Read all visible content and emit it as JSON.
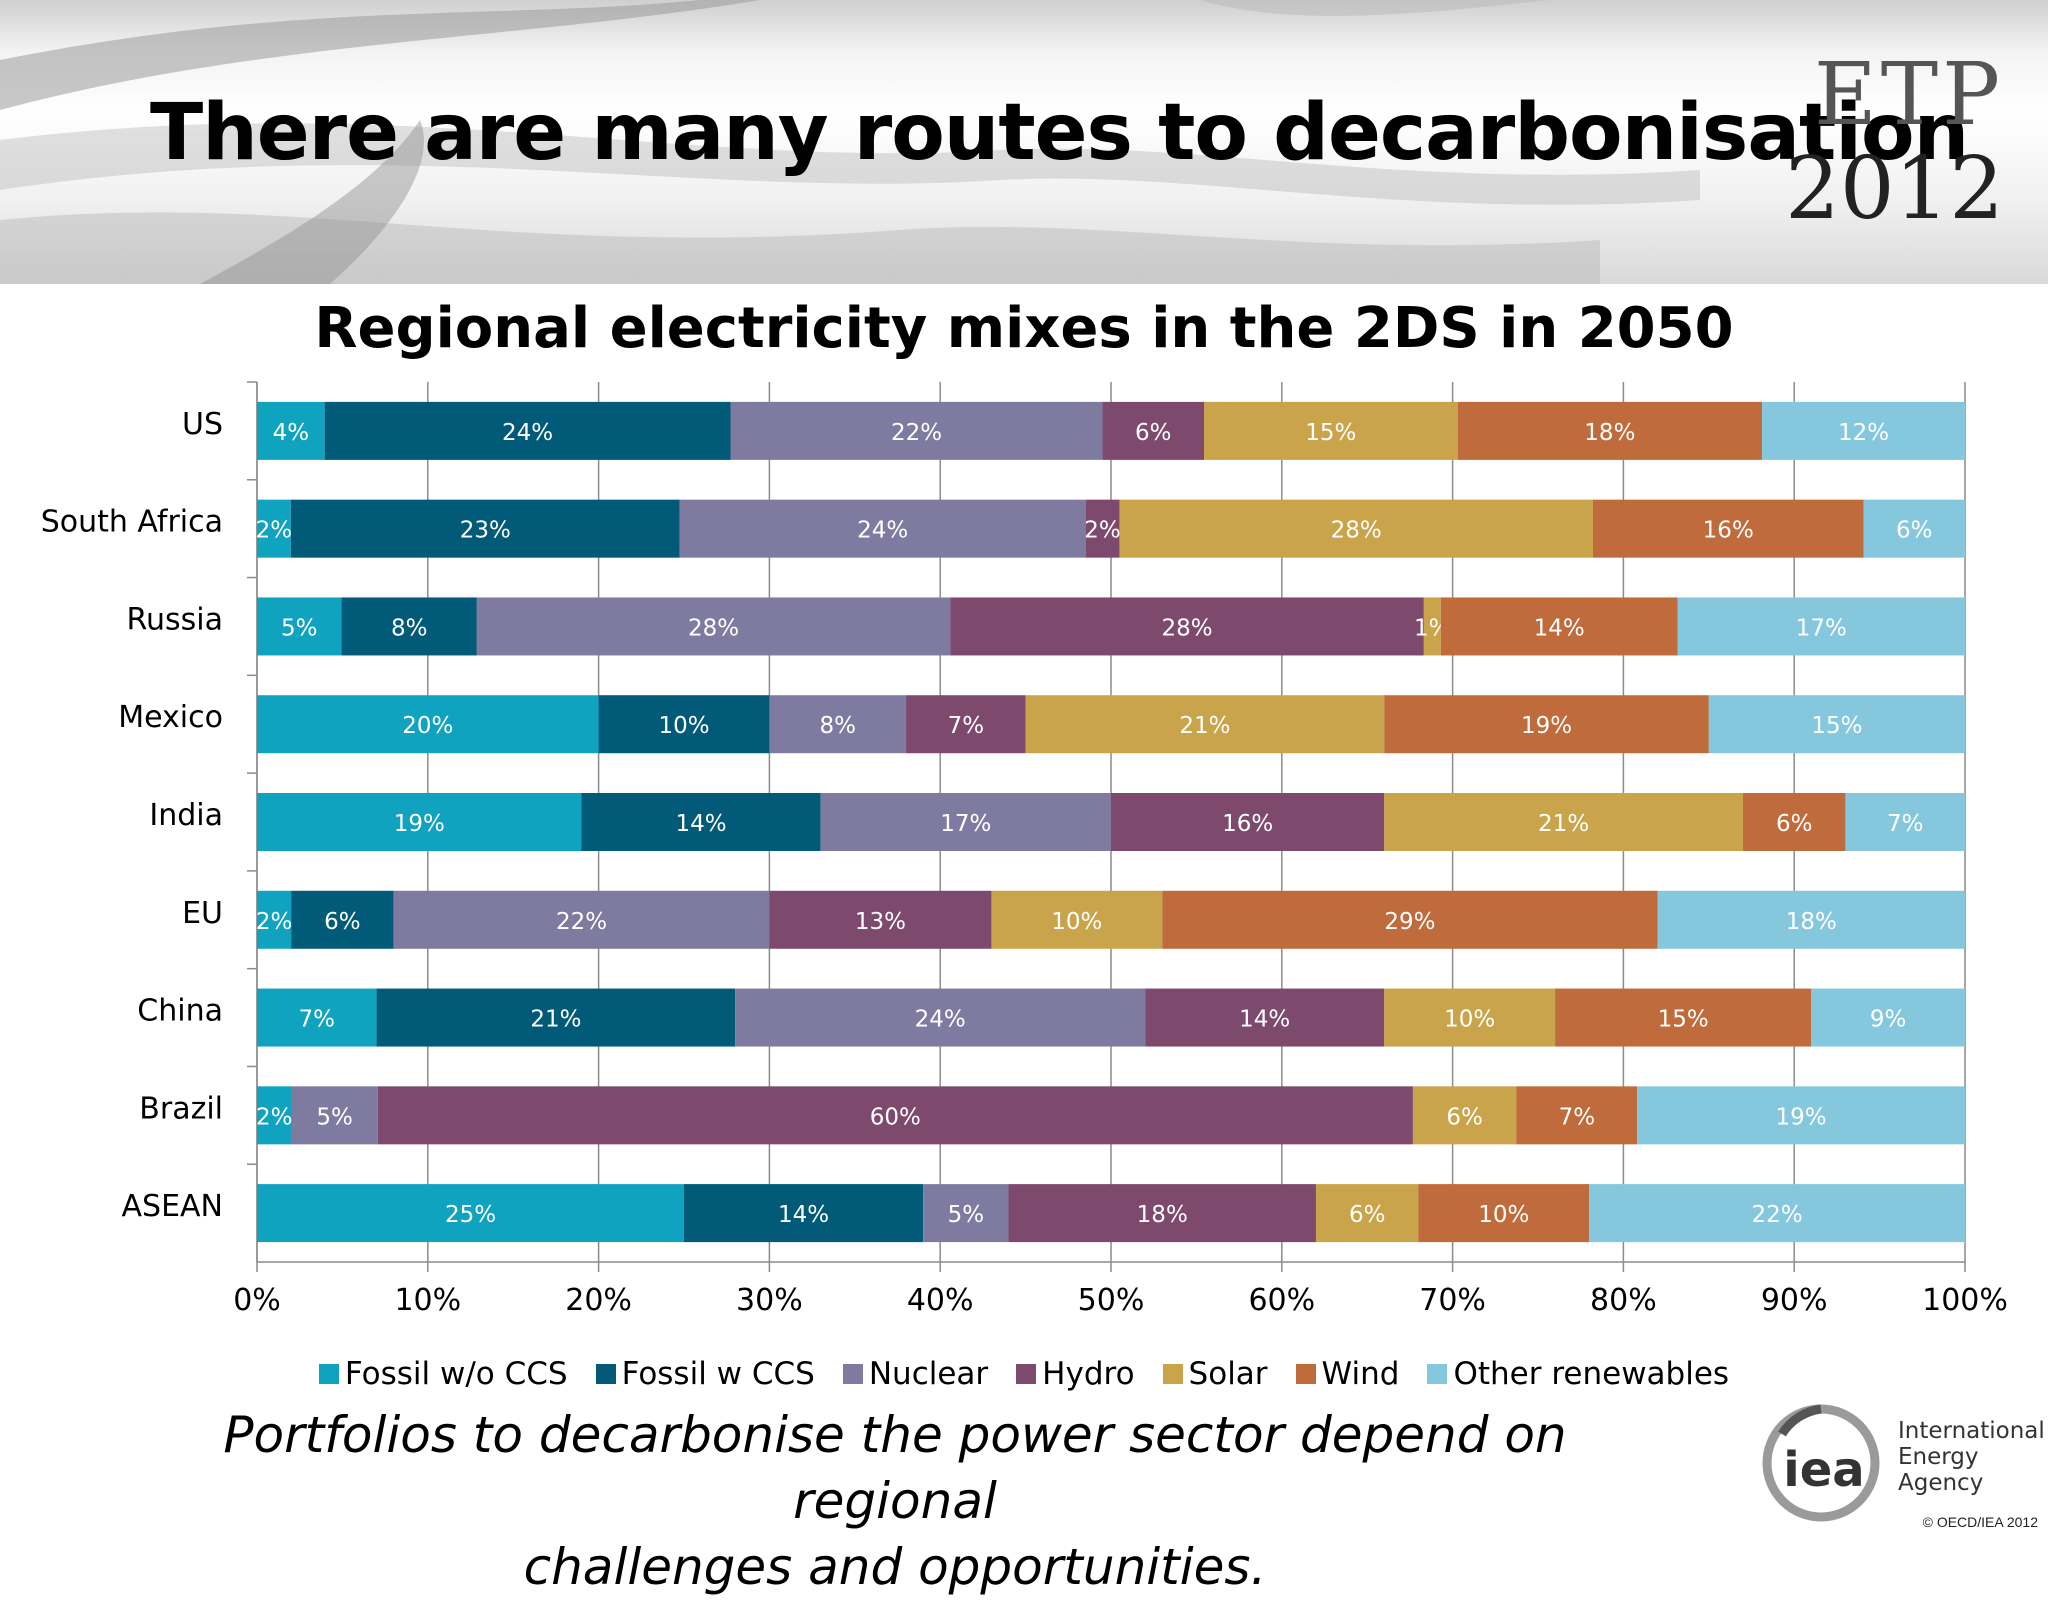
{
  "slide": {
    "title": "There are many routes to decarbonisation",
    "badge_line1": "ETP",
    "badge_line2": "2012",
    "subtitle_line1": "Portfolios to decarbonise the power sector depend on regional",
    "subtitle_line2": "challenges and opportunities.",
    "logo_text": "iea",
    "org_line1": "International",
    "org_line2": "Energy Agency",
    "copyright": "© OECD/IEA 2012"
  },
  "colors": {
    "Fossil w/o CCS": "#0fa3bf",
    "Fossil w CCS": "#005a78",
    "Nuclear": "#7f7ba0",
    "Hydro": "#7d4a6e",
    "Solar": "#c9a44a",
    "Wind": "#c06b3b",
    "Other renewables": "#85c8de"
  },
  "chart_data": {
    "type": "bar",
    "orientation": "horizontal",
    "stacked": "percent",
    "title": "Regional electricity mixes in the 2DS in 2050",
    "categories": [
      "US",
      "South Africa",
      "Russia",
      "Mexico",
      "India",
      "EU",
      "China",
      "Brazil",
      "ASEAN"
    ],
    "x_ticks": [
      "0%",
      "10%",
      "20%",
      "30%",
      "40%",
      "50%",
      "60%",
      "70%",
      "80%",
      "90%",
      "100%"
    ],
    "xlim": [
      0,
      100
    ],
    "grid": true,
    "legend_position": "bottom",
    "series": [
      {
        "name": "Fossil w/o CCS",
        "values": [
          4,
          2,
          5,
          20,
          19,
          2,
          7,
          2,
          25
        ],
        "labels": [
          "4%",
          "2%",
          "5%",
          "20%",
          "19%",
          "2%",
          "7%",
          "2%",
          "25%"
        ]
      },
      {
        "name": "Fossil w CCS",
        "values": [
          24,
          23,
          8,
          10,
          14,
          6,
          21,
          0,
          14
        ],
        "labels": [
          "24%",
          "23%",
          "8%",
          "10%",
          "14%",
          "6%",
          "21%",
          "0%",
          "14%"
        ]
      },
      {
        "name": "Nuclear",
        "values": [
          22,
          24,
          28,
          8,
          17,
          22,
          24,
          5,
          5
        ],
        "labels": [
          "22%",
          "24%",
          "28%",
          "8%",
          "17%",
          "22%",
          "24%",
          "5%",
          "5%"
        ]
      },
      {
        "name": "Hydro",
        "values": [
          6,
          2,
          28,
          7,
          16,
          13,
          14,
          60,
          18
        ],
        "labels": [
          "6%",
          "2%",
          "28%",
          "7%",
          "16%",
          "13%",
          "14%",
          "60%",
          "18%"
        ]
      },
      {
        "name": "Solar",
        "values": [
          15,
          28,
          1,
          21,
          21,
          10,
          10,
          6,
          6
        ],
        "labels": [
          "15%",
          "28%",
          "1%",
          "21%",
          "21%",
          "10%",
          "10%",
          "6%",
          "6%"
        ]
      },
      {
        "name": "Wind",
        "values": [
          18,
          16,
          14,
          19,
          6,
          29,
          15,
          7,
          10
        ],
        "labels": [
          "18%",
          "16%",
          "14%",
          "19%",
          "6%",
          "29%",
          "15%",
          "7%",
          "10%"
        ]
      },
      {
        "name": "Other renewables",
        "values": [
          12,
          6,
          17,
          15,
          7,
          18,
          9,
          19,
          22
        ],
        "labels": [
          "12%",
          "6%",
          "17%",
          "15%",
          "7%",
          "18%",
          "9%",
          "19%",
          "22%"
        ]
      }
    ]
  }
}
